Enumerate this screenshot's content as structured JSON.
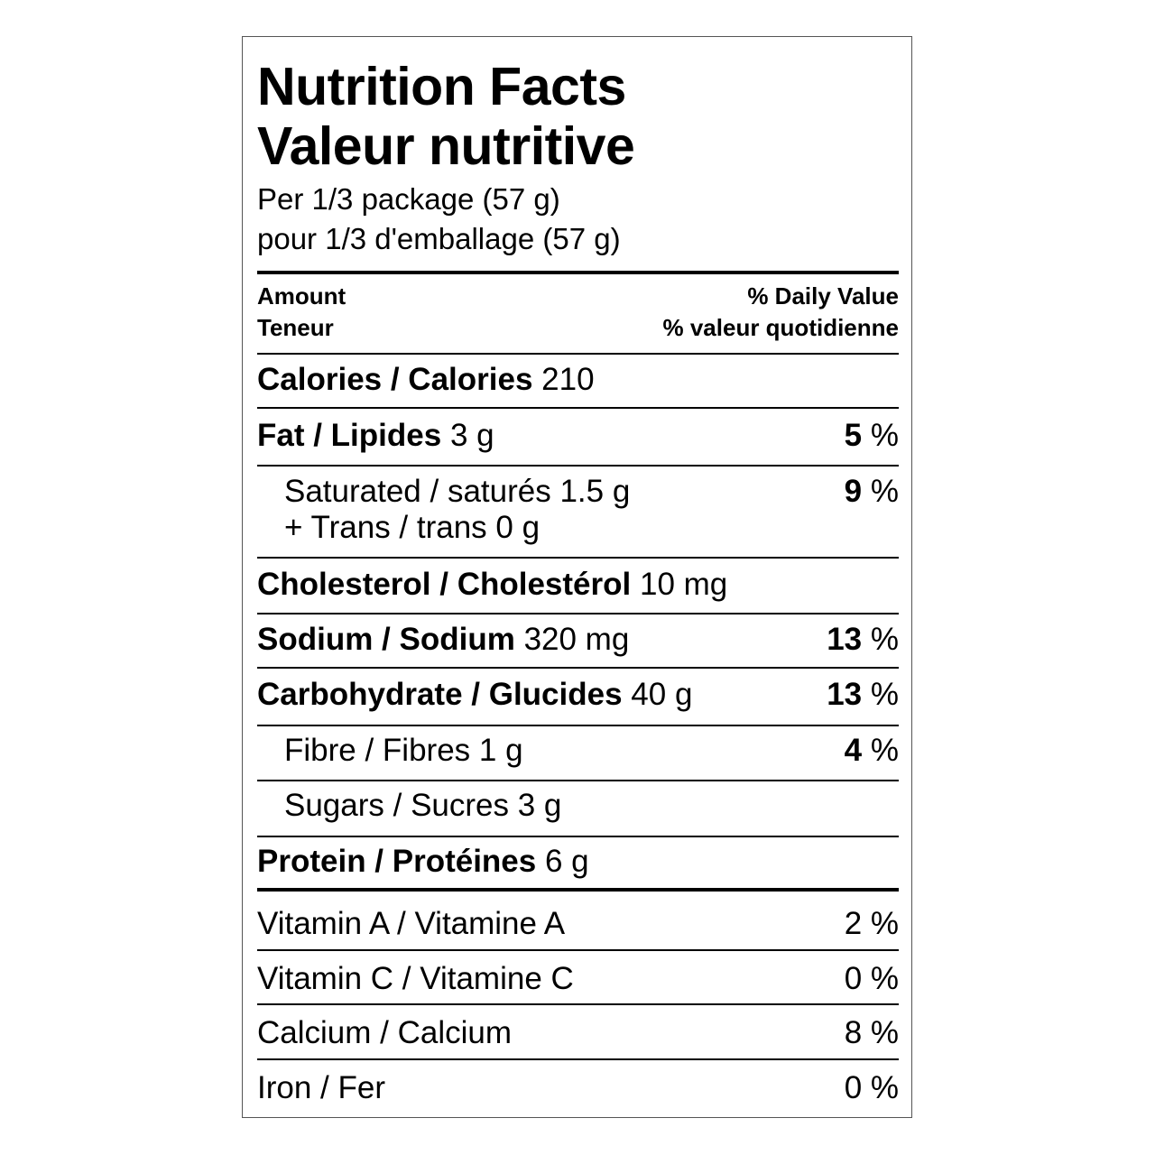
{
  "title_en": "Nutrition Facts",
  "title_fr": "Valeur nutritive",
  "serving_en": "Per 1/3 package (57 g)",
  "serving_fr": "pour 1/3 d'emballage (57 g)",
  "header": {
    "amount_en": "Amount",
    "amount_fr": "Teneur",
    "dv_en": "% Daily Value",
    "dv_fr": "% valeur quotidienne"
  },
  "nutrients": [
    {
      "label": "Calories / Calories",
      "amount": "210",
      "pct": ""
    },
    {
      "label": "Fat / Lipides",
      "amount": "3 g",
      "pct": "5"
    },
    {
      "label": "Saturated / saturés",
      "amount": "1.5 g",
      "label2": "+ Trans / trans",
      "amount2": "0 g",
      "pct": "9"
    },
    {
      "label": "Cholesterol / Cholestérol",
      "amount": "10 mg",
      "pct": ""
    },
    {
      "label": "Sodium / Sodium",
      "amount": "320 mg",
      "pct": "13"
    },
    {
      "label": "Carbohydrate / Glucides",
      "amount": "40 g",
      "pct": "13"
    },
    {
      "label": "Fibre / Fibres",
      "amount": "1 g",
      "pct": "4"
    },
    {
      "label": "Sugars / Sucres",
      "amount": "3 g",
      "pct": ""
    },
    {
      "label": "Protein / Protéines",
      "amount": "6 g",
      "pct": ""
    }
  ],
  "vitamins": [
    {
      "label": "Vitamin A / Vitamine A",
      "pct": "2 %"
    },
    {
      "label": "Vitamin C / Vitamine C",
      "pct": "0 %"
    },
    {
      "label": "Calcium / Calcium",
      "pct": "8 %"
    },
    {
      "label": "Iron / Fer",
      "pct": "0 %"
    }
  ],
  "pct_sign": "%"
}
